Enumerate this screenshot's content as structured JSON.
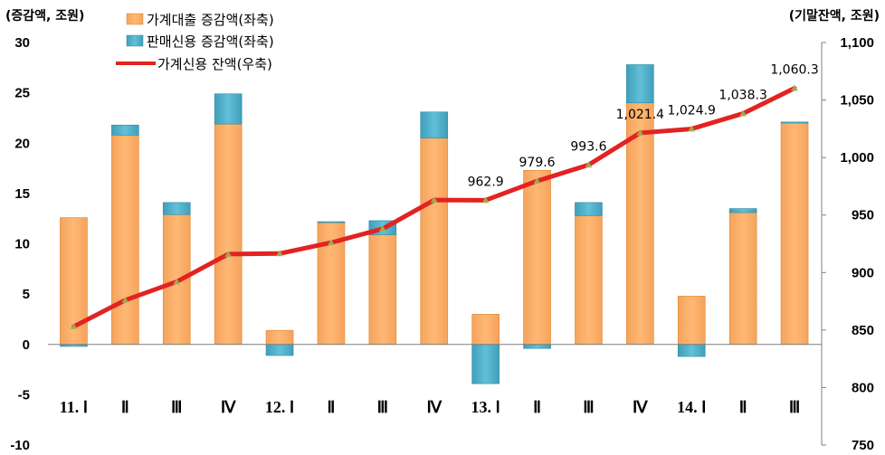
{
  "chart_data": {
    "type": "bar",
    "left_unit": "(증감액, 조원)",
    "right_unit": "(기말잔액, 조원)",
    "categories": [
      "11. Ⅰ",
      "Ⅱ",
      "Ⅲ",
      "Ⅳ",
      "12. Ⅰ",
      "Ⅱ",
      "Ⅲ",
      "Ⅳ",
      "13. Ⅰ",
      "Ⅱ",
      "Ⅲ",
      "Ⅳ",
      "14. Ⅰ",
      "Ⅱ",
      "Ⅲ"
    ],
    "y_left": {
      "min": -10,
      "max": 30,
      "step": 5,
      "ticks": [
        "-10",
        "-5",
        "0",
        "5",
        "10",
        "15",
        "20",
        "25",
        "30"
      ]
    },
    "y_right": {
      "min": 750,
      "max": 1100,
      "step": 50,
      "ticks": [
        "750",
        "800",
        "850",
        "900",
        "950",
        "1,000",
        "1,050",
        "1,100"
      ]
    },
    "series": [
      {
        "name": "가계대출 증감액(좌축)",
        "kind": "bar",
        "axis": "left",
        "color": "#f79646",
        "values": [
          12.6,
          20.8,
          12.9,
          21.9,
          1.4,
          12.1,
          10.9,
          20.5,
          3.0,
          17.3,
          12.8,
          24.0,
          4.8,
          13.1,
          22.0
        ]
      },
      {
        "name": "판매신용 증감액(좌축)",
        "kind": "bar",
        "axis": "left",
        "color": "#4bacc6",
        "values": [
          -0.2,
          1.0,
          1.2,
          3.0,
          -1.1,
          0.1,
          1.4,
          2.6,
          -3.9,
          -0.4,
          1.3,
          3.8,
          -1.2,
          0.4,
          0.1
        ]
      },
      {
        "name": "가계신용 잔액(우축)",
        "kind": "line",
        "axis": "right",
        "color": "#e32222",
        "values": [
          853.0,
          876.0,
          892.0,
          916.0,
          916.5,
          926.0,
          938.0,
          963.0,
          962.9,
          979.6,
          993.6,
          1021.4,
          1024.9,
          1038.3,
          1060.3
        ]
      }
    ],
    "data_labels": [
      {
        "index": 8,
        "text": "962.9"
      },
      {
        "index": 9,
        "text": "979.6"
      },
      {
        "index": 10,
        "text": "993.6"
      },
      {
        "index": 11,
        "text": "1,021.4"
      },
      {
        "index": 12,
        "text": "1,024.9"
      },
      {
        "index": 13,
        "text": "1,038.3"
      },
      {
        "index": 14,
        "text": "1,060.3"
      }
    ],
    "legend_position": "top-left",
    "grid": false
  }
}
